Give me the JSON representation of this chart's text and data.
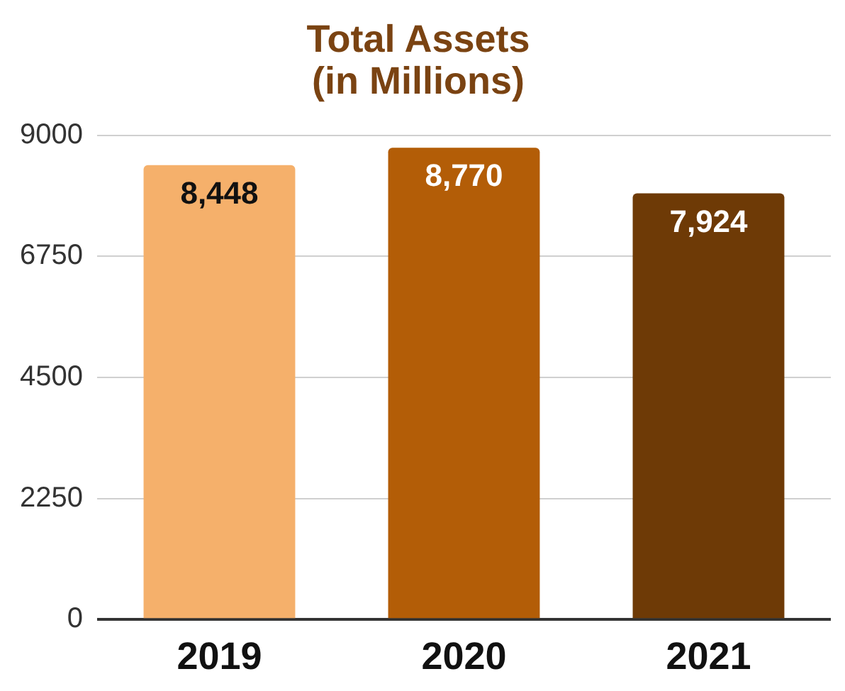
{
  "chart_data": {
    "type": "bar",
    "title": "Total Assets\n(in Millions)",
    "categories": [
      "2019",
      "2020",
      "2021"
    ],
    "values": [
      8448,
      8770,
      7924
    ],
    "colors": [
      "#f5b06b",
      "#b35d07",
      "#6e3a06"
    ],
    "value_labels": [
      "8,448",
      "8,770",
      "7,924"
    ],
    "ylim": [
      0,
      9000
    ],
    "yticks": [
      0,
      2250,
      4500,
      6750,
      9000
    ],
    "grid": "y",
    "legend": false
  }
}
